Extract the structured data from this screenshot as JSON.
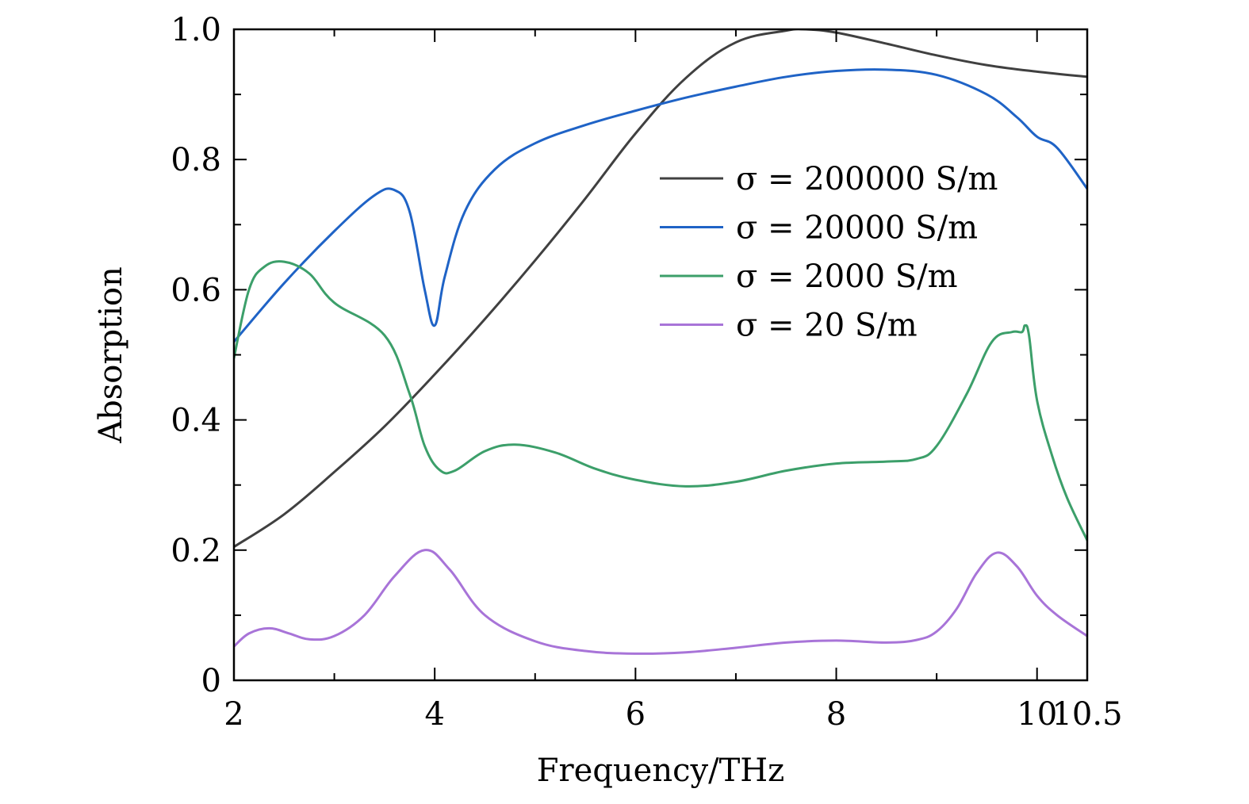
{
  "chart_data": {
    "type": "line",
    "title": "",
    "xlabel": "Frequency/THz",
    "ylabel": "Absorption",
    "xlim": [
      2,
      10.5
    ],
    "ylim": [
      0,
      1.0
    ],
    "grid": false,
    "legend_position": "top-right",
    "x_ticks": [
      {
        "value": 2,
        "label": "2"
      },
      {
        "value": 4,
        "label": "4"
      },
      {
        "value": 6,
        "label": "6"
      },
      {
        "value": 8,
        "label": "8"
      },
      {
        "value": 10,
        "label": "10"
      },
      {
        "value": 10.5,
        "label": "10.5"
      }
    ],
    "x_minor_ticks": [
      3,
      5,
      7,
      9
    ],
    "y_ticks": [
      {
        "value": 0,
        "label": "0"
      },
      {
        "value": 0.2,
        "label": "0.2"
      },
      {
        "value": 0.4,
        "label": "0.4"
      },
      {
        "value": 0.6,
        "label": "0.6"
      },
      {
        "value": 0.8,
        "label": "0.8"
      },
      {
        "value": 1.0,
        "label": "1.0"
      }
    ],
    "y_minor_ticks": [
      0.1,
      0.3,
      0.5,
      0.7,
      0.9
    ],
    "series": [
      {
        "name": "σ = 200000 S/m",
        "color": "#404040",
        "x": [
          2.0,
          2.5,
          3.0,
          3.5,
          4.0,
          4.5,
          5.0,
          5.5,
          6.0,
          6.5,
          7.0,
          7.5,
          7.7,
          8.0,
          8.5,
          9.0,
          9.5,
          10.0,
          10.5
        ],
        "y": [
          0.205,
          0.255,
          0.32,
          0.39,
          0.47,
          0.555,
          0.645,
          0.74,
          0.84,
          0.925,
          0.98,
          0.998,
          1.0,
          0.995,
          0.978,
          0.96,
          0.945,
          0.935,
          0.927
        ]
      },
      {
        "name": "σ = 20000 S/m",
        "color": "#1f63c6",
        "x": [
          2.0,
          2.5,
          3.0,
          3.4,
          3.6,
          3.75,
          3.9,
          4.0,
          4.1,
          4.3,
          4.6,
          5.0,
          5.5,
          6.0,
          6.5,
          7.0,
          7.5,
          8.0,
          8.5,
          9.0,
          9.5,
          9.8,
          10.0,
          10.2,
          10.5
        ],
        "y": [
          0.52,
          0.61,
          0.69,
          0.745,
          0.753,
          0.72,
          0.6,
          0.545,
          0.62,
          0.72,
          0.785,
          0.825,
          0.853,
          0.875,
          0.895,
          0.912,
          0.927,
          0.936,
          0.938,
          0.93,
          0.9,
          0.865,
          0.835,
          0.818,
          0.755
        ]
      },
      {
        "name": "σ = 2000 S/m",
        "color": "#3c9f6a",
        "x": [
          2.0,
          2.15,
          2.3,
          2.5,
          2.75,
          3.0,
          3.5,
          3.75,
          3.9,
          4.05,
          4.2,
          4.5,
          4.8,
          5.2,
          5.6,
          6.0,
          6.5,
          7.0,
          7.5,
          8.0,
          8.5,
          8.8,
          9.0,
          9.3,
          9.55,
          9.75,
          9.85,
          9.88,
          9.92,
          10.0,
          10.15,
          10.3,
          10.5
        ],
        "y": [
          0.495,
          0.6,
          0.635,
          0.643,
          0.625,
          0.58,
          0.53,
          0.44,
          0.36,
          0.323,
          0.322,
          0.352,
          0.362,
          0.35,
          0.325,
          0.308,
          0.298,
          0.305,
          0.322,
          0.333,
          0.336,
          0.34,
          0.36,
          0.44,
          0.52,
          0.535,
          0.535,
          0.545,
          0.53,
          0.43,
          0.345,
          0.28,
          0.215
        ]
      },
      {
        "name": "σ = 20 S/m",
        "color": "#a874d8",
        "x": [
          2.0,
          2.15,
          2.35,
          2.55,
          2.75,
          3.0,
          3.3,
          3.6,
          3.9,
          4.15,
          4.5,
          5.0,
          5.5,
          6.0,
          6.5,
          7.0,
          7.5,
          8.0,
          8.5,
          8.8,
          9.0,
          9.2,
          9.4,
          9.6,
          9.8,
          10.0,
          10.2,
          10.5
        ],
        "y": [
          0.052,
          0.072,
          0.08,
          0.072,
          0.063,
          0.068,
          0.1,
          0.16,
          0.2,
          0.17,
          0.1,
          0.06,
          0.045,
          0.041,
          0.043,
          0.05,
          0.058,
          0.061,
          0.058,
          0.062,
          0.075,
          0.11,
          0.165,
          0.196,
          0.175,
          0.13,
          0.1,
          0.068
        ]
      }
    ]
  }
}
